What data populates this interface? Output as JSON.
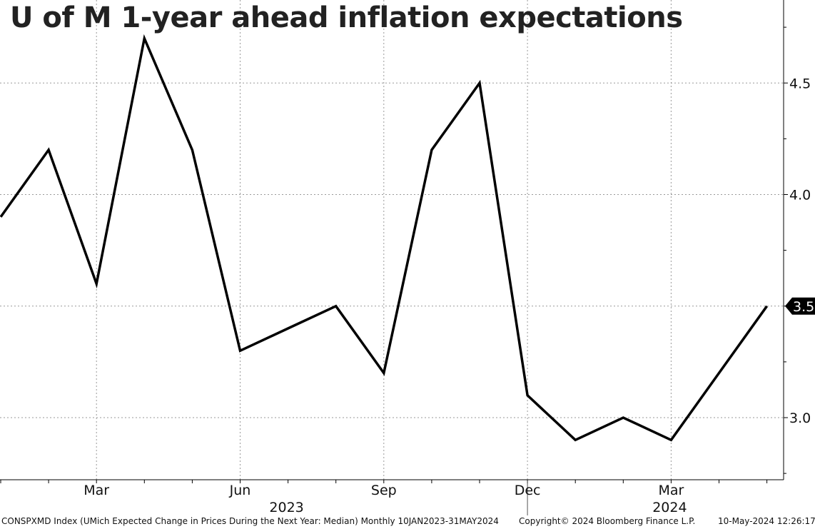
{
  "chart_data": {
    "type": "line",
    "title": "U of M 1-year ahead inflation expectations",
    "x": [
      "2023-01",
      "2023-02",
      "2023-03",
      "2023-04",
      "2023-05",
      "2023-06",
      "2023-07",
      "2023-08",
      "2023-09",
      "2023-10",
      "2023-11",
      "2023-12",
      "2024-01",
      "2024-02",
      "2024-03",
      "2024-04",
      "2024-05"
    ],
    "series": [
      {
        "values": [
          3.9,
          4.2,
          3.6,
          4.7,
          4.2,
          3.3,
          3.4,
          3.5,
          3.2,
          4.2,
          4.5,
          3.1,
          2.9,
          3.0,
          2.9,
          3.2,
          3.5
        ],
        "color": "#000000"
      }
    ],
    "x_ticks": [
      {
        "label": "Mar",
        "x": "2023-03"
      },
      {
        "label": "Jun",
        "x": "2023-06"
      },
      {
        "label": "Sep",
        "x": "2023-09"
      },
      {
        "label": "Dec",
        "x": "2023-12"
      },
      {
        "label": "Mar",
        "x": "2024-03"
      }
    ],
    "year_labels": [
      {
        "label": "2023",
        "x": "2023-07"
      },
      {
        "label": "2024",
        "x": "2024-03"
      }
    ],
    "y_ticks": [
      "3.0",
      "3.5",
      "4.0",
      "4.5"
    ],
    "ylim": [
      2.72,
      4.85
    ],
    "last_value_label": "3.5",
    "grid": true,
    "y_axis_side": "right"
  },
  "footer": {
    "source": "CONSPXMD Index (UMich Expected Change in Prices During the Next Year: Median)  Monthly 10JAN2023-31MAY2024",
    "copyright": "Copyright© 2024 Bloomberg Finance L.P.",
    "timestamp": "10-May-2024 12:26:17"
  }
}
